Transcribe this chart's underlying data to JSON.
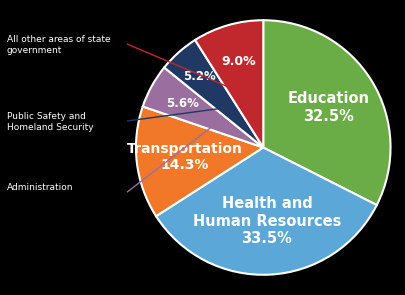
{
  "slices": [
    {
      "label": "Education\n32.5%",
      "value": 32.5,
      "color": "#6aac45",
      "text_color": "white",
      "fontsize": 10.5,
      "label_r": 0.6
    },
    {
      "label": "Health and\nHuman Resources\n33.5%",
      "value": 33.5,
      "color": "#5ba8d8",
      "text_color": "white",
      "fontsize": 10.5,
      "label_r": 0.58
    },
    {
      "label": "Transportation\n14.3%",
      "value": 14.3,
      "color": "#f07828",
      "text_color": "white",
      "fontsize": 10.0,
      "label_r": 0.62
    },
    {
      "label": "5.6%",
      "value": 5.6,
      "color": "#9b6ea0",
      "text_color": "white",
      "fontsize": 8.5,
      "label_r": 0.72
    },
    {
      "label": "5.2%",
      "value": 5.2,
      "color": "#1f3864",
      "text_color": "white",
      "fontsize": 8.5,
      "label_r": 0.75
    },
    {
      "label": "9.0%",
      "value": 9.0,
      "color": "#c0282d",
      "text_color": "white",
      "fontsize": 9.0,
      "label_r": 0.7
    }
  ],
  "legend_entries": [
    {
      "label": "All other areas of state\ngovernment",
      "color": "#c0282d",
      "slice_idx": 5
    },
    {
      "label": "Public Safety and\nHomeland Security",
      "color": "#1f3864",
      "slice_idx": 4
    },
    {
      "label": "Administration",
      "color": "#9b6ea0",
      "slice_idx": 3
    }
  ],
  "background_color": "#000000",
  "pie_edge_color": "white",
  "startangle": 90
}
